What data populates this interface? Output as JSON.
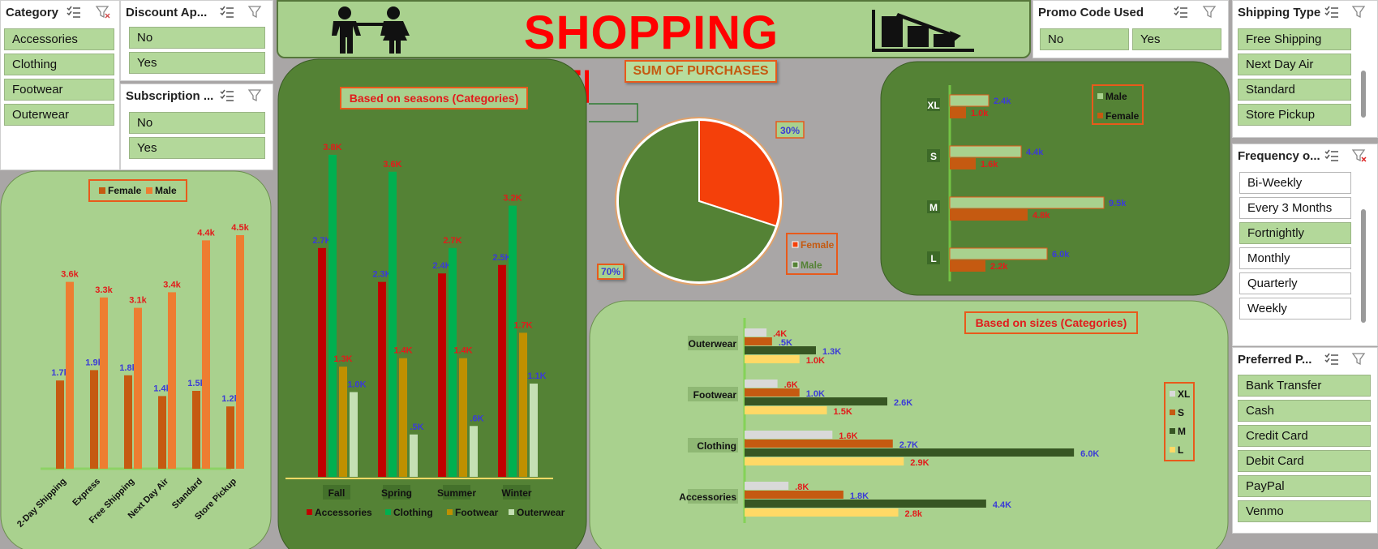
{
  "header": {
    "title": "SHOPPING TRENDS",
    "icon_left": "couple-icon",
    "icon_right": "bar-chart-decline-icon"
  },
  "slicers": {
    "category": {
      "title": "Category",
      "items": [
        "Accessories",
        "Clothing",
        "Footwear",
        "Outerwear"
      ]
    },
    "discount": {
      "title": "Discount Ap...",
      "items": [
        "No",
        "Yes"
      ]
    },
    "subscription": {
      "title": "Subscription ...",
      "items": [
        "No",
        "Yes"
      ]
    },
    "promo": {
      "title": "Promo Code Used",
      "items": [
        "No",
        "Yes"
      ]
    },
    "shipping": {
      "title": "Shipping Type",
      "items": [
        "Free Shipping",
        "Next Day Air",
        "Standard",
        "Store Pickup"
      ]
    },
    "frequency": {
      "title": "Frequency o...",
      "items": [
        "Bi-Weekly",
        "Every 3 Months",
        "Fortnightly",
        "Monthly",
        "Quarterly",
        "Weekly"
      ],
      "selected": [
        "Fortnightly"
      ]
    },
    "payment": {
      "title": "Preferred P...",
      "items": [
        "Bank Transfer",
        "Cash",
        "Credit Card",
        "Debit Card",
        "PayPal",
        "Venmo"
      ]
    }
  },
  "colors": {
    "panel_dark": "#548235",
    "panel_light": "#a9d18e",
    "female": "#c55a11",
    "male_bar": "#ed7d31",
    "accessories": "#c00000",
    "clothing": "#00b050",
    "footwear": "#bf9000",
    "outerwear": "#c5e0b4"
  },
  "chart_data": [
    {
      "id": "shipping",
      "type": "bar",
      "categories": [
        "2-Day Shipping",
        "Express",
        "Free Shipping",
        "Next Day Air",
        "Standard",
        "Store Pickup"
      ],
      "series": [
        {
          "name": "Female",
          "values": [
            1.7,
            1.9,
            1.8,
            1.4,
            1.5,
            1.2
          ],
          "labels": [
            "1.7k",
            "1.9k",
            "1.8k",
            "1.4k",
            "1.5k",
            "1.2k"
          ]
        },
        {
          "name": "Male",
          "values": [
            3.6,
            3.3,
            3.1,
            3.4,
            4.4,
            4.5
          ],
          "labels": [
            "3.6k",
            "3.3k",
            "3.1k",
            "3.4k",
            "4.4k",
            "4.5k"
          ]
        }
      ],
      "ylim": [
        0,
        5
      ],
      "legend": "top"
    },
    {
      "id": "seasons",
      "type": "bar",
      "title": "Based on seasons (Categories)",
      "categories": [
        "Fall",
        "Spring",
        "Summer",
        "Winter"
      ],
      "series": [
        {
          "name": "Accessories",
          "values": [
            2.7,
            2.3,
            2.4,
            2.5
          ],
          "labels": [
            "2.7K",
            "2.3K",
            "2.4K",
            "2.5K"
          ]
        },
        {
          "name": "Clothing",
          "values": [
            3.8,
            3.6,
            2.7,
            3.2
          ],
          "labels": [
            "3.8K",
            "3.6K",
            "2.7K",
            "3.2K"
          ]
        },
        {
          "name": "Footwear",
          "values": [
            1.3,
            1.4,
            1.4,
            1.7
          ],
          "labels": [
            "1.3K",
            "1.4K",
            "1.4K",
            "1.7K"
          ]
        },
        {
          "name": "Outerwear",
          "values": [
            1.0,
            0.5,
            0.6,
            1.1
          ],
          "labels": [
            "1.0K",
            ".5K",
            ".6K",
            "1.1K"
          ]
        }
      ],
      "ylim": [
        0,
        4
      ],
      "legend": "bottom"
    },
    {
      "id": "gender-pie",
      "type": "pie",
      "title": "SUM OF PURCHASES",
      "slices": [
        {
          "name": "Female",
          "value": 30,
          "label": "30%"
        },
        {
          "name": "Male",
          "value": 70,
          "label": "70%"
        }
      ],
      "legend": "bottom-right"
    },
    {
      "id": "gender-sizes",
      "type": "bar",
      "orientation": "horizontal",
      "categories": [
        "XL",
        "S",
        "M",
        "L"
      ],
      "series": [
        {
          "name": "Male",
          "values": [
            2.4,
            4.4,
            9.5,
            6.0
          ],
          "labels": [
            "2.4k",
            "4.4k",
            "9.5k",
            "6.0k"
          ]
        },
        {
          "name": "Female",
          "values": [
            1.0,
            1.6,
            4.8,
            2.2
          ],
          "labels": [
            "1.0k",
            "1.6k",
            "4.8k",
            "2.2k"
          ]
        }
      ],
      "xlim": [
        0,
        10
      ],
      "legend": "top-right"
    },
    {
      "id": "sizes",
      "type": "bar",
      "orientation": "horizontal",
      "title": "Based on sizes (Categories)",
      "categories": [
        "Outerwear",
        "Footwear",
        "Clothing",
        "Accessories"
      ],
      "series": [
        {
          "name": "XL",
          "values": [
            0.4,
            0.6,
            1.6,
            0.8
          ],
          "labels": [
            ".4K",
            ".6K",
            "1.6K",
            ".8K"
          ]
        },
        {
          "name": "S",
          "values": [
            0.5,
            1.0,
            2.7,
            1.8
          ],
          "labels": [
            ".5K",
            "1.0K",
            "2.7K",
            "1.8K"
          ]
        },
        {
          "name": "M",
          "values": [
            1.3,
            2.6,
            6.0,
            4.4
          ],
          "labels": [
            "1.3K",
            "2.6K",
            "6.0K",
            "4.4K"
          ]
        },
        {
          "name": "L",
          "values": [
            1.0,
            1.5,
            2.9,
            2.8
          ],
          "labels": [
            "1.0K",
            "1.5K",
            "2.9K",
            "2.8k"
          ]
        }
      ],
      "xlim": [
        0,
        6.5
      ],
      "legend": "right"
    }
  ]
}
